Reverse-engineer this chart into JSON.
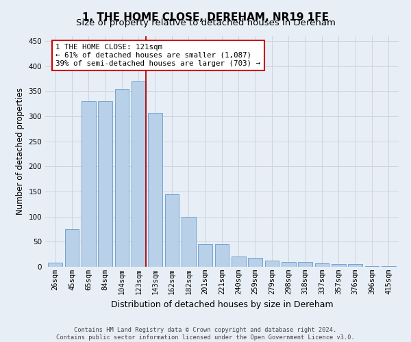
{
  "title": "1, THE HOME CLOSE, DEREHAM, NR19 1FE",
  "subtitle": "Size of property relative to detached houses in Dereham",
  "xlabel": "Distribution of detached houses by size in Dereham",
  "ylabel": "Number of detached properties",
  "categories": [
    "26sqm",
    "45sqm",
    "65sqm",
    "84sqm",
    "104sqm",
    "123sqm",
    "143sqm",
    "162sqm",
    "182sqm",
    "201sqm",
    "221sqm",
    "240sqm",
    "259sqm",
    "279sqm",
    "298sqm",
    "318sqm",
    "337sqm",
    "357sqm",
    "376sqm",
    "396sqm",
    "415sqm"
  ],
  "values": [
    8,
    75,
    330,
    330,
    355,
    370,
    307,
    145,
    100,
    45,
    45,
    20,
    18,
    12,
    10,
    10,
    7,
    5,
    5,
    2,
    2
  ],
  "bar_color": "#b8d0e8",
  "bar_edge_color": "#6699cc",
  "property_bin_index": 5,
  "vline_color": "#aa0000",
  "annotation_text": "1 THE HOME CLOSE: 121sqm\n← 61% of detached houses are smaller (1,087)\n39% of semi-detached houses are larger (703) →",
  "annotation_box_color": "#ffffff",
  "annotation_box_edge": "#cc0000",
  "grid_color": "#ccd5e0",
  "background_color": "#e8eef5",
  "footer1": "Contains HM Land Registry data © Crown copyright and database right 2024.",
  "footer2": "Contains public sector information licensed under the Open Government Licence v3.0.",
  "ylim": [
    0,
    460
  ],
  "yticks": [
    0,
    50,
    100,
    150,
    200,
    250,
    300,
    350,
    400,
    450
  ],
  "title_fontsize": 11,
  "subtitle_fontsize": 9.5,
  "tick_fontsize": 7.5,
  "ylabel_fontsize": 8.5,
  "xlabel_fontsize": 9
}
